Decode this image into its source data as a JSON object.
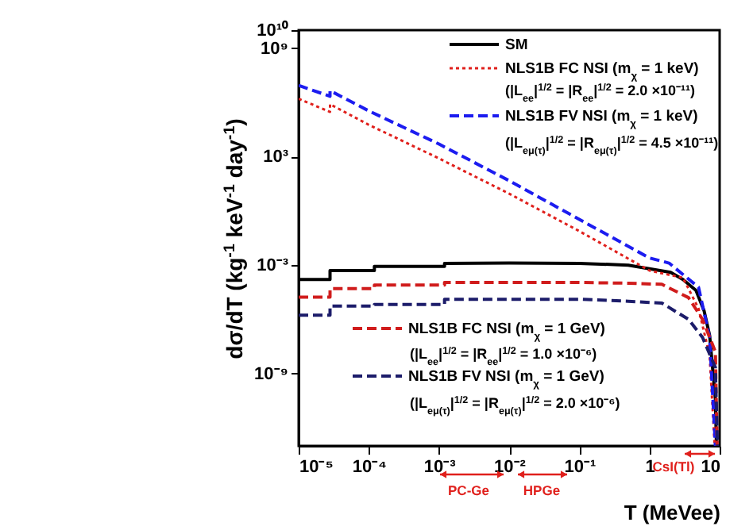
{
  "chart_data": {
    "type": "line",
    "xlabel": "T (MeVee)",
    "ylabel": "dσ/dT (kg$^{-1}$ keV$^{-1}$ day$^{-1}$)",
    "log": "xy",
    "legend": "top right",
    "xlim": [
      1e-05,
      10
    ],
    "ylim": [
      1e-13,
      10000000000.0
    ],
    "xticks": [
      {
        "value": 1e-05,
        "label": "10⁻⁵"
      },
      {
        "value": 0.0001,
        "label": "10⁻⁴"
      },
      {
        "value": 0.001,
        "label": "10⁻³"
      },
      {
        "value": 0.01,
        "label": "10⁻²"
      },
      {
        "value": 0.1,
        "label": "10⁻¹"
      },
      1,
      10
    ],
    "yticks": [
      {
        "value": 1e-09,
        "label": "10⁻⁹"
      },
      {
        "value": 0.001,
        "label": "10⁻³"
      },
      {
        "value": 1000.0,
        "label": "10³"
      },
      {
        "value": 1000000000.0,
        "label": "10⁹"
      },
      {
        "value": 10000000000.0,
        "label": "10¹⁰"
      }
    ],
    "series": [
      {
        "name": "SM",
        "color": "#000000",
        "line_style": "solid",
        "x": [
          1e-05,
          2.8e-05,
          2.8e-05,
          0.00012,
          0.00012,
          0.0012,
          0.0012,
          0.01,
          0.1,
          0.5,
          1,
          2,
          3,
          4.6,
          6,
          7.2,
          8.7,
          9
        ],
        "values": [
          0.00016,
          0.00016,
          0.0005,
          0.0005,
          0.00085,
          0.00085,
          0.00126,
          0.0013,
          0.00126,
          0.001,
          0.00063,
          0.0004,
          0.00016,
          4e-05,
          3e-06,
          1.3e-07,
          4e-11,
          1e-13
        ]
      },
      {
        "name": "NLS1B FC NSI (m$_{χ}$ = 1 keV)",
        "color": "#e0201c",
        "line_style": "dotted",
        "x": [
          1e-05,
          2.8e-05,
          2.8e-05,
          0.0001,
          0.001,
          0.01,
          0.1,
          1,
          3,
          5,
          7.2,
          8.5
        ],
        "values": [
          1600000.0,
          300000.0,
          800000.0,
          58000.0,
          800,
          9,
          0.076,
          0.0005,
          0.0002,
          4e-06,
          1e-08,
          1e-13
        ]
      },
      {
        "name": "NLS1B FV NSI (m$_{χ}$ = 1 keV)",
        "color": "#1c1cf0",
        "line_style": "dashed",
        "x": [
          1e-05,
          2.8e-05,
          2.8e-05,
          0.0001,
          0.001,
          0.01,
          0.1,
          1,
          1.9,
          5,
          7.2,
          8.7
        ],
        "values": [
          8700000.0,
          2200000.0,
          4500000.0,
          340000.0,
          5000,
          47,
          0.34,
          0.0025,
          0.0013,
          6e-05,
          1e-07,
          1e-13
        ]
      },
      {
        "name": "NLS1B FC NSI (m$_{χ}$ = 1 GeV)",
        "color": "#d01c1c",
        "line_style": "dashed",
        "x": [
          1e-05,
          2.8e-05,
          2.8e-05,
          0.00012,
          0.00012,
          0.0012,
          0.0012,
          0.1,
          0.5,
          1.5,
          3.6,
          5.7,
          8.7,
          9.2
        ],
        "values": [
          1.7e-05,
          1.7e-05,
          5e-05,
          5e-05,
          8e-05,
          8e-05,
          0.00011,
          0.00011,
          0.0001,
          8.7e-05,
          1.6e-05,
          1e-06,
          1.6e-08,
          1e-13
        ]
      },
      {
        "name": "NLS1B FV NSI (m$_{χ}$ = 1 GeV)",
        "color": "#1c1c6a",
        "line_style": "dashed",
        "x": [
          1e-05,
          2.8e-05,
          2.8e-05,
          0.00012,
          0.00012,
          0.0012,
          0.0012,
          0.1,
          0.5,
          1.5,
          3.6,
          5.7,
          8.7,
          9.3
        ],
        "values": [
          1.7e-06,
          1.7e-06,
          5.4e-06,
          5.4e-06,
          6.6e-06,
          6.6e-06,
          1.3e-05,
          1.3e-05,
          1e-05,
          8e-06,
          1e-06,
          1e-07,
          2.2e-09,
          1e-13
        ]
      }
    ],
    "annotations": [
      "(|L$_{ee}$|$^{1/2}$ = |R$_{ee}$|$^{1/2}$ = 2.0 ×10⁻¹¹)",
      "(|L$_{eμ(τ)}$|$^{1/2}$ = |R$_{eμ(τ)}$|$^{1/2}$ = 4.5 ×10⁻¹¹)",
      "(|L$_{ee}$|$^{1/2}$ = |R$_{ee}$|$^{1/2}$ = 1.0 ×10⁻⁶)",
      "(|L$_{eμ(τ)}$|$^{1/2}$ = |R$_{eμ(τ)}$|$^{1/2}$ = 2.0 ×10⁻⁶)",
      "PC-Ge",
      "HPGe",
      "CsI(Tl)"
    ]
  }
}
